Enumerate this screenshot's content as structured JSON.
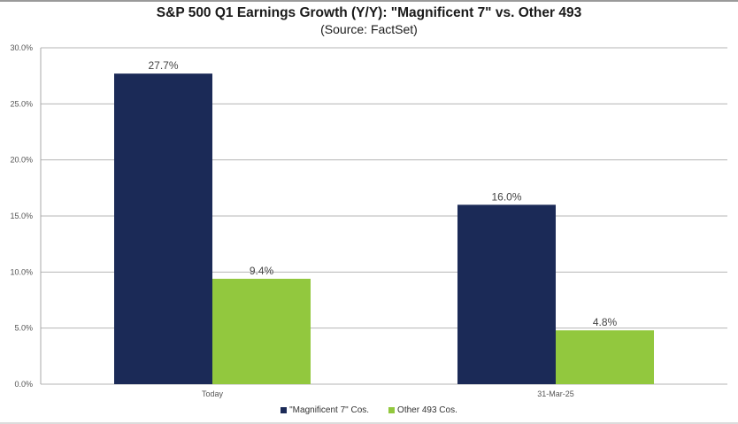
{
  "chart_data": {
    "type": "bar",
    "title": "S&P 500 Q1 Earnings Growth (Y/Y): \"Magnificent 7\" vs. Other 493",
    "subtitle": "(Source: FactSet)",
    "xlabel": "",
    "ylabel": "",
    "categories": [
      "Today",
      "31-Mar-25"
    ],
    "series": [
      {
        "name": "\"Magnificent 7\" Cos.",
        "values": [
          27.7,
          16.0
        ],
        "labels": [
          "27.7%",
          "16.0%"
        ],
        "color": "#1b2a57"
      },
      {
        "name": "Other 493 Cos.",
        "values": [
          9.4,
          4.8
        ],
        "labels": [
          "9.4%",
          "4.8%"
        ],
        "color": "#92c83e"
      }
    ],
    "ylim": [
      0,
      30
    ],
    "yticks": [
      "0.0%",
      "5.0%",
      "10.0%",
      "15.0%",
      "20.0%",
      "25.0%",
      "30.0%"
    ],
    "grid": true,
    "legend_position": "bottom"
  }
}
